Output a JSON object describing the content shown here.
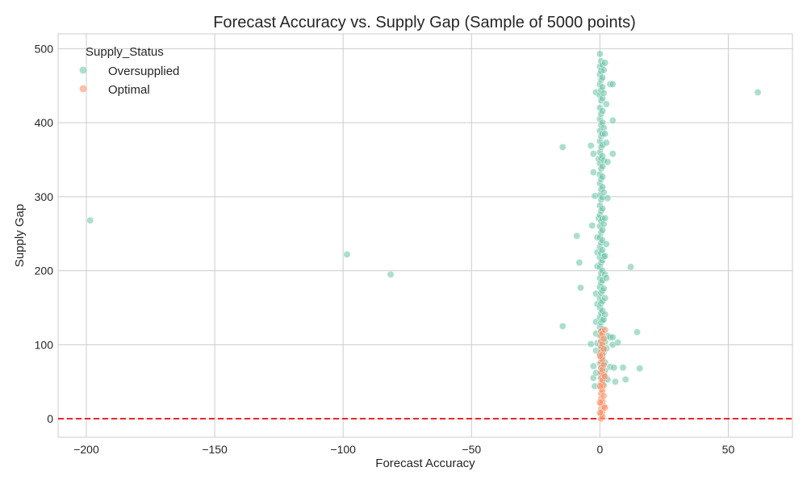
{
  "chart_data": {
    "type": "scatter",
    "title": "Forecast Accuracy vs. Supply Gap (Sample of 5000 points)",
    "xlabel": "Forecast Accuracy",
    "ylabel": "Supply Gap",
    "xlim": [
      -211,
      75
    ],
    "ylim": [
      -25,
      520
    ],
    "x_ticks": [
      -200,
      -150,
      -100,
      -50,
      0,
      50
    ],
    "x_tick_labels": [
      "−200",
      "−150",
      "−100",
      "−50",
      "0",
      "50"
    ],
    "y_ticks": [
      0,
      100,
      200,
      300,
      400,
      500
    ],
    "y_tick_labels": [
      "0",
      "100",
      "200",
      "300",
      "400",
      "500"
    ],
    "grid": true,
    "legend": {
      "title": "Supply_Status",
      "placement": "top-left",
      "entries": [
        "Oversupplied",
        "Optimal"
      ]
    },
    "reference_line": {
      "y": 0,
      "color": "#e41a1c",
      "style": "dashed"
    },
    "series": [
      {
        "name": "Oversupplied",
        "color": "#66c2a5",
        "points": [
          [
            -198.5,
            268
          ],
          [
            -98.5,
            222
          ],
          [
            -81.5,
            195
          ],
          [
            -14.5,
            367
          ],
          [
            -14.5,
            125
          ],
          [
            -9,
            247
          ],
          [
            -8,
            211
          ],
          [
            -7.5,
            177
          ],
          [
            -3.5,
            101
          ],
          [
            -3.5,
            369
          ],
          [
            -3,
            261
          ],
          [
            -2.5,
            358
          ],
          [
            -2.5,
            333
          ],
          [
            -2,
            301
          ],
          [
            -2.5,
            71
          ],
          [
            -2.5,
            55
          ],
          [
            -2,
            44
          ],
          [
            -1.5,
            441
          ],
          [
            -1.5,
            169
          ],
          [
            -1.5,
            115
          ],
          [
            -1.5,
            131
          ],
          [
            -1.5,
            92
          ],
          [
            -1.5,
            62
          ],
          [
            -1,
            245
          ],
          [
            -1,
            225
          ],
          [
            -1,
            206
          ],
          [
            -1,
            155
          ],
          [
            -1,
            102
          ],
          [
            -0.5,
            351
          ],
          [
            -0.5,
            271
          ],
          [
            0,
            493
          ],
          [
            0,
            476
          ],
          [
            0,
            465
          ],
          [
            0,
            452
          ],
          [
            0,
            437
          ],
          [
            0,
            420
          ],
          [
            0,
            405
          ],
          [
            0,
            389
          ],
          [
            0,
            375
          ],
          [
            0,
            360
          ],
          [
            0,
            345
          ],
          [
            0,
            330
          ],
          [
            0,
            318
          ],
          [
            0,
            302
          ],
          [
            0,
            288
          ],
          [
            0,
            275
          ],
          [
            0,
            260
          ],
          [
            0,
            245
          ],
          [
            0,
            232
          ],
          [
            0,
            218
          ],
          [
            0,
            205
          ],
          [
            0,
            190
          ],
          [
            0,
            178
          ],
          [
            0,
            163
          ],
          [
            0,
            150
          ],
          [
            0,
            137
          ],
          [
            0,
            124
          ],
          [
            0,
            112
          ],
          [
            0,
            100
          ],
          [
            0,
            88
          ],
          [
            0,
            75
          ],
          [
            0,
            62
          ],
          [
            0.5,
            483
          ],
          [
            0.5,
            470
          ],
          [
            0.5,
            458
          ],
          [
            0.5,
            444
          ],
          [
            0.5,
            430
          ],
          [
            0.5,
            412
          ],
          [
            0.5,
            397
          ],
          [
            0.5,
            382
          ],
          [
            0.5,
            367
          ],
          [
            0.5,
            352
          ],
          [
            0.5,
            338
          ],
          [
            0.5,
            324
          ],
          [
            0.5,
            310
          ],
          [
            0.5,
            296
          ],
          [
            0.5,
            281
          ],
          [
            0.5,
            267
          ],
          [
            0.5,
            252
          ],
          [
            0.5,
            238
          ],
          [
            0.5,
            224
          ],
          [
            0.5,
            211
          ],
          [
            0.5,
            197
          ],
          [
            0.5,
            184
          ],
          [
            0.5,
            170
          ],
          [
            0.5,
            156
          ],
          [
            0.5,
            143
          ],
          [
            0.5,
            130
          ],
          [
            0.5,
            118
          ],
          [
            0.5,
            106
          ],
          [
            0.5,
            94
          ],
          [
            0.5,
            81
          ],
          [
            0.5,
            68
          ],
          [
            0.5,
            55
          ],
          [
            1,
            478
          ],
          [
            1,
            461
          ],
          [
            1,
            448
          ],
          [
            1,
            433
          ],
          [
            1,
            416
          ],
          [
            1,
            400
          ],
          [
            1,
            385
          ],
          [
            1,
            370
          ],
          [
            1,
            355
          ],
          [
            1,
            341
          ],
          [
            1,
            327
          ],
          [
            1,
            313
          ],
          [
            1,
            299
          ],
          [
            1,
            284
          ],
          [
            1,
            270
          ],
          [
            1,
            255
          ],
          [
            1,
            241
          ],
          [
            1,
            228
          ],
          [
            1,
            214
          ],
          [
            1,
            200
          ],
          [
            1,
            187
          ],
          [
            1,
            173
          ],
          [
            1,
            159
          ],
          [
            1,
            146
          ],
          [
            1,
            133
          ],
          [
            1,
            121
          ],
          [
            1,
            108
          ],
          [
            1,
            96
          ],
          [
            1,
            84
          ],
          [
            1,
            71
          ],
          [
            1,
            58
          ],
          [
            1,
            46
          ],
          [
            1.5,
            471
          ],
          [
            1.5,
            440
          ],
          [
            1.5,
            393
          ],
          [
            1.5,
            349
          ],
          [
            1.5,
            306
          ],
          [
            1.5,
            263
          ],
          [
            1.5,
            219
          ],
          [
            1.5,
            176
          ],
          [
            1.5,
            134
          ],
          [
            1.5,
            90
          ],
          [
            1.5,
            52
          ],
          [
            2,
            481
          ],
          [
            2,
            385
          ],
          [
            2,
            271
          ],
          [
            2,
            220
          ],
          [
            2,
            195
          ],
          [
            2,
            163
          ],
          [
            2,
            141
          ],
          [
            2,
            104
          ],
          [
            2,
            76
          ],
          [
            2,
            65
          ],
          [
            2.5,
            425
          ],
          [
            2.5,
            373
          ],
          [
            2.5,
            236
          ],
          [
            2.5,
            190
          ],
          [
            2.5,
            95
          ],
          [
            3,
            347
          ],
          [
            3,
            298
          ],
          [
            3,
            112
          ],
          [
            3,
            53
          ],
          [
            4,
            452
          ],
          [
            4,
            110
          ],
          [
            4,
            70
          ],
          [
            5,
            452
          ],
          [
            5,
            403
          ],
          [
            5,
            358
          ],
          [
            5,
            110
          ],
          [
            5,
            100
          ],
          [
            5.5,
            69
          ],
          [
            6,
            50
          ],
          [
            7,
            103
          ],
          [
            9,
            69
          ],
          [
            10,
            53
          ],
          [
            12,
            205
          ],
          [
            14.5,
            117
          ],
          [
            15.5,
            68
          ],
          [
            61.5,
            441
          ]
        ]
      },
      {
        "name": "Optimal",
        "color": "#fc8d62",
        "points": [
          [
            0.5,
            118
          ],
          [
            0.5,
            112
          ],
          [
            0.5,
            104
          ],
          [
            0.5,
            97
          ],
          [
            0.5,
            90
          ],
          [
            0.5,
            83
          ],
          [
            0.5,
            76
          ],
          [
            0.5,
            69
          ],
          [
            0.5,
            62
          ],
          [
            0.5,
            55
          ],
          [
            0.5,
            48
          ],
          [
            0.5,
            41
          ],
          [
            0.5,
            34
          ],
          [
            0.5,
            27
          ],
          [
            0.5,
            20
          ],
          [
            0.5,
            13
          ],
          [
            0.5,
            6
          ],
          [
            0.5,
            0
          ],
          [
            1,
            115
          ],
          [
            1,
            101
          ],
          [
            1,
            87
          ],
          [
            1,
            80
          ],
          [
            1,
            66
          ],
          [
            1,
            52
          ],
          [
            1,
            38
          ],
          [
            1,
            24
          ],
          [
            1,
            10
          ],
          [
            1,
            3
          ],
          [
            1.5,
            108
          ],
          [
            1.5,
            94
          ],
          [
            1.5,
            73
          ],
          [
            1.5,
            59
          ],
          [
            1.5,
            45
          ],
          [
            1.5,
            31
          ],
          [
            1.5,
            17
          ],
          [
            0,
            85
          ],
          [
            0,
            44
          ],
          [
            0,
            22
          ],
          [
            0,
            8
          ],
          [
            2,
            120
          ],
          [
            2,
            57
          ],
          [
            2,
            15
          ]
        ]
      }
    ]
  }
}
